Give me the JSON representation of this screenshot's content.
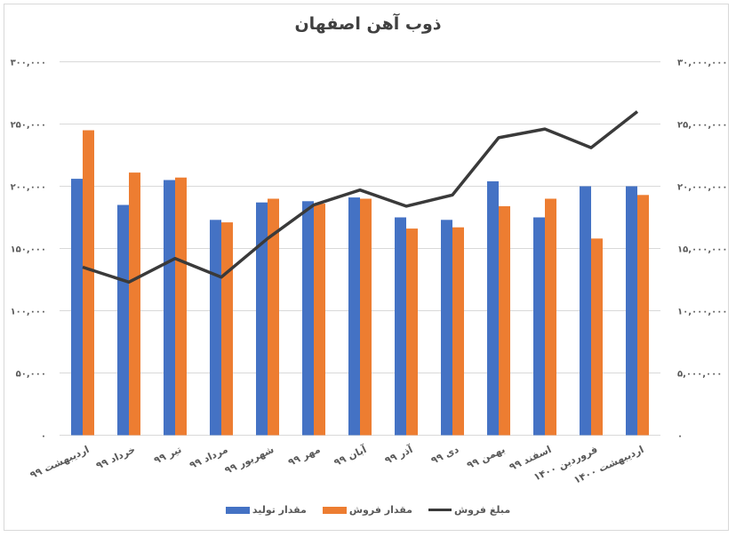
{
  "title": "ذوب آهن اصفهان",
  "colors": {
    "production": "#4472c4",
    "sales_qty": "#ed7d31",
    "sales_amount": "#3a3a3a",
    "grid": "#d9d9d9"
  },
  "legend": [
    {
      "label": "مقدار تولید",
      "type": "bar",
      "color": "#4472c4"
    },
    {
      "label": "مقدار فروش",
      "type": "bar",
      "color": "#ed7d31"
    },
    {
      "label": "مبلغ فروش",
      "type": "line",
      "color": "#3a3a3a"
    }
  ],
  "chart_data": {
    "type": "bar",
    "title": "ذوب آهن اصفهان",
    "xlabel": "",
    "ylabel": "",
    "grid": true,
    "legend_position": "bottom",
    "categories": [
      "اردیبهشت ۹۹",
      "خرداد ۹۹",
      "تیر ۹۹",
      "مرداد ۹۹",
      "شهریور ۹۹",
      "مهر ۹۹",
      "آبان ۹۹",
      "آذر ۹۹",
      "دی ۹۹",
      "بهمن ۹۹",
      "اسفند ۹۹",
      "فروردین ۱۴۰۰",
      "اردیبهشت ۱۴۰۰"
    ],
    "series": [
      {
        "name": "مقدار تولید",
        "type": "bar",
        "axis": "left",
        "color": "#4472c4",
        "values": [
          206000,
          185000,
          205000,
          173000,
          187000,
          188000,
          191000,
          175000,
          173000,
          204000,
          175000,
          200000,
          200000
        ]
      },
      {
        "name": "مقدار فروش",
        "type": "bar",
        "axis": "left",
        "color": "#ed7d31",
        "values": [
          245000,
          211000,
          207000,
          171000,
          190000,
          186000,
          190000,
          166000,
          167000,
          184000,
          190000,
          158000,
          193000
        ]
      },
      {
        "name": "مبلغ فروش",
        "type": "line",
        "axis": "right",
        "color": "#3a3a3a",
        "values": [
          13500000,
          12300000,
          14200000,
          12700000,
          15800000,
          18500000,
          19700000,
          18400000,
          19300000,
          23900000,
          24600000,
          23100000,
          26000000
        ]
      }
    ],
    "ylim_left": [
      0,
      300000
    ],
    "ylim_right": [
      0,
      30000000
    ],
    "left_ticks": [
      "۰",
      "۵۰,۰۰۰",
      "۱۰۰,۰۰۰",
      "۱۵۰,۰۰۰",
      "۲۰۰,۰۰۰",
      "۲۵۰,۰۰۰",
      "۳۰۰,۰۰۰"
    ],
    "right_ticks": [
      "۰",
      "۵,۰۰۰,۰۰۰",
      "۱۰,۰۰۰,۰۰۰",
      "۱۵,۰۰۰,۰۰۰",
      "۲۰,۰۰۰,۰۰۰",
      "۲۵,۰۰۰,۰۰۰",
      "۳۰,۰۰۰,۰۰۰"
    ]
  }
}
